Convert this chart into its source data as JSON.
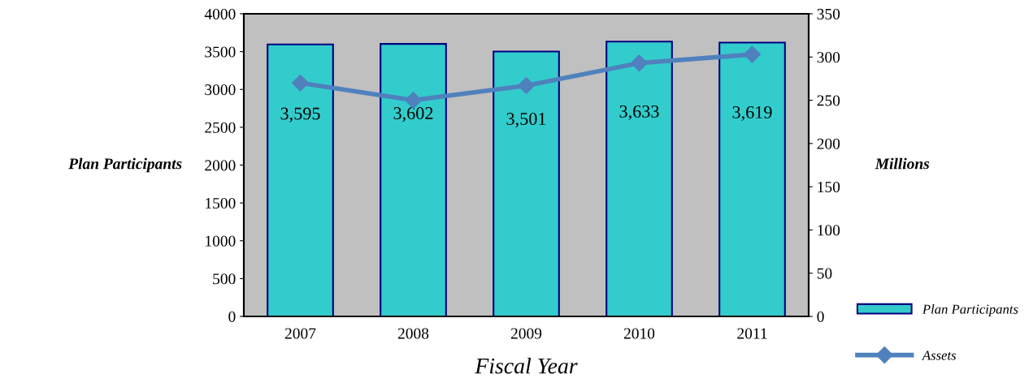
{
  "chart_data": {
    "type": "bar",
    "categories": [
      "2007",
      "2008",
      "2009",
      "2010",
      "2011"
    ],
    "xlabel": "Fiscal Year",
    "ylabel": "Plan Participants",
    "y2label": "Millions",
    "series": [
      {
        "name": "Plan Participants",
        "color": "#33cccc",
        "values": [
          3595,
          3602,
          3501,
          3633,
          3619
        ],
        "value_labels": [
          "3,595",
          "3,602",
          "3,501",
          "3,633",
          "3,619"
        ]
      },
      {
        "name": "Assets",
        "type": "line",
        "axis": "y2",
        "color": "#4f81bd",
        "marker": "diamond",
        "values": [
          270,
          250,
          267,
          293,
          303
        ]
      }
    ],
    "ylim": [
      0,
      4000
    ],
    "yticks": [
      0,
      500,
      1000,
      1500,
      2000,
      2500,
      3000,
      3500,
      4000
    ],
    "y2lim": [
      0,
      350
    ],
    "y2ticks": [
      0,
      50,
      100,
      150,
      200,
      250,
      300,
      350
    ],
    "grid": false,
    "legend": "bottom right"
  }
}
